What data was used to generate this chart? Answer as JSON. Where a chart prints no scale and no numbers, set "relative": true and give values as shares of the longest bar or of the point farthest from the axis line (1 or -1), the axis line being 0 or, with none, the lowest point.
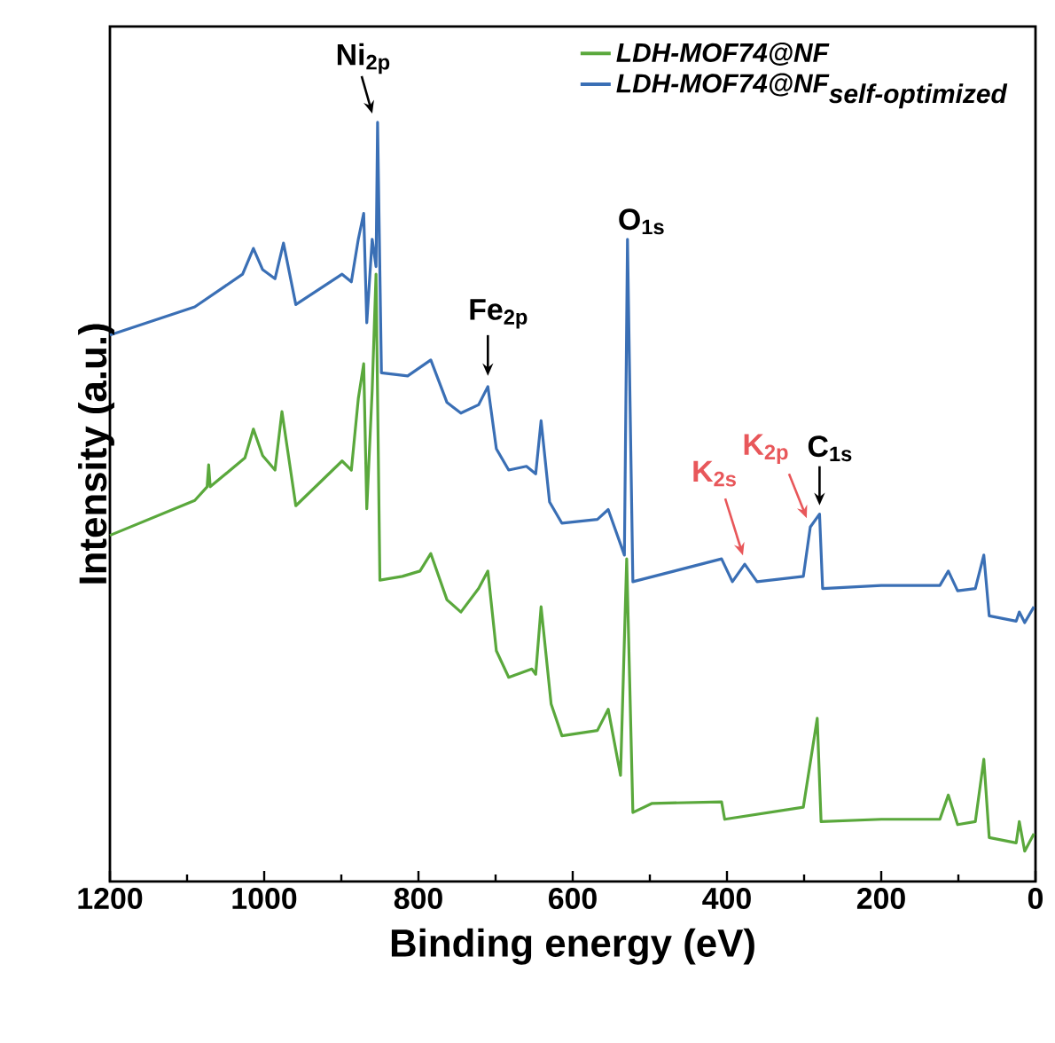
{
  "chart_data": {
    "type": "line",
    "relative": true,
    "xlabel": "Binding energy (eV)",
    "ylabel": "Intensity (a.u.)",
    "xlim": [
      1200,
      0
    ],
    "xticks": [
      1200,
      1000,
      800,
      600,
      400,
      200,
      0
    ],
    "grid": false,
    "legend": "top right",
    "marker": "none",
    "line_style": "solid",
    "series": [
      {
        "name": "\\textit{LDH-MOF74@NF}",
        "color": "#5aa83c",
        "x": [
          1200,
          1090,
          1074,
          1072,
          1070,
          1025,
          1014,
          1002,
          986,
          977,
          959,
          899,
          887,
          878,
          871,
          867,
          860,
          855,
          850,
          821,
          798,
          784,
          763,
          745,
          722,
          710,
          699,
          683,
          653,
          648,
          641,
          628,
          614,
          568,
          554,
          538,
          530,
          522,
          497,
          407,
          403,
          301,
          283,
          278,
          200,
          124,
          113,
          101,
          78,
          67,
          60,
          25,
          21,
          14,
          2
        ],
        "values": [
          0.456,
          0.502,
          0.52,
          0.549,
          0.52,
          0.558,
          0.596,
          0.561,
          0.542,
          0.619,
          0.495,
          0.554,
          0.542,
          0.636,
          0.682,
          0.491,
          0.647,
          0.8,
          0.397,
          0.402,
          0.409,
          0.432,
          0.371,
          0.355,
          0.386,
          0.409,
          0.304,
          0.269,
          0.28,
          0.273,
          0.362,
          0.234,
          0.192,
          0.199,
          0.227,
          0.14,
          0.425,
          0.091,
          0.103,
          0.105,
          0.082,
          0.098,
          0.215,
          0.079,
          0.082,
          0.082,
          0.114,
          0.075,
          0.079,
          0.161,
          0.058,
          0.051,
          0.079,
          0.04,
          0.063
        ]
      },
      {
        "name": "\\textit{LDH-MOF74@NF}_{\\textit{self-optimized}}",
        "color": "#3a6fb5",
        "x": [
          1200,
          1090,
          1028,
          1014,
          1002,
          986,
          975,
          959,
          899,
          887,
          878,
          871,
          867,
          860,
          855,
          853,
          848,
          814,
          784,
          763,
          745,
          722,
          710,
          699,
          683,
          660,
          648,
          641,
          630,
          614,
          568,
          554,
          533,
          529,
          522,
          407,
          393,
          377,
          361,
          301,
          292,
          280,
          276,
          200,
          124,
          113,
          101,
          78,
          67,
          60,
          25,
          21,
          14,
          2
        ],
        "values": [
          0.72,
          0.757,
          0.8,
          0.834,
          0.806,
          0.794,
          0.841,
          0.76,
          0.8,
          0.79,
          0.846,
          0.88,
          0.736,
          0.846,
          0.81,
          1,
          0.67,
          0.666,
          0.687,
          0.631,
          0.617,
          0.628,
          0.652,
          0.57,
          0.542,
          0.547,
          0.537,
          0.607,
          0.5,
          0.472,
          0.477,
          0.49,
          0.43,
          0.846,
          0.395,
          0.425,
          0.395,
          0.418,
          0.395,
          0.402,
          0.467,
          0.484,
          0.386,
          0.39,
          0.39,
          0.409,
          0.383,
          0.386,
          0.43,
          0.35,
          0.343,
          0.355,
          0.341,
          0.362
        ]
      }
    ],
    "annotations": [
      {
        "text": "Ni$_{2p}$",
        "x": 853,
        "y": 1
      },
      {
        "text": "Fe$_{2p}$",
        "x": 710,
        "y": 0.652
      },
      {
        "text": "O$_{1s}$",
        "x": 529,
        "y": 0.846
      },
      {
        "text": "K$_{2s}$",
        "x": 377,
        "y": 0.418
      },
      {
        "text": "K$_{2p}$",
        "x": 292,
        "y": 0.467
      },
      {
        "text": "C$_{1s}$",
        "x": 280,
        "y": 0.484
      }
    ]
  }
}
